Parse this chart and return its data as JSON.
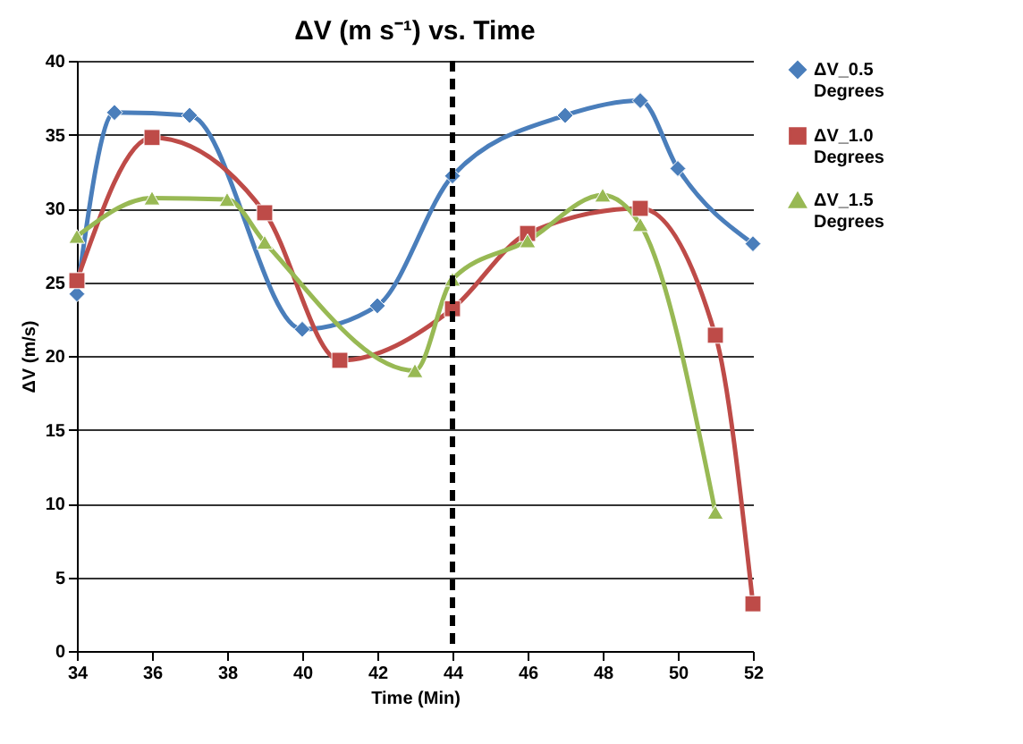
{
  "chart_data": {
    "type": "line",
    "title": "ΔV (m s⁻¹) vs. Time",
    "xlabel": "Time (Min)",
    "ylabel": "ΔV (m/s)",
    "xlim": [
      34,
      52
    ],
    "xticks": [
      34,
      36,
      38,
      40,
      42,
      44,
      46,
      48,
      50,
      52
    ],
    "ylim": [
      0,
      40
    ],
    "yticks": [
      0,
      5,
      10,
      15,
      20,
      25,
      30,
      35,
      40
    ],
    "grid": "y",
    "legend": "right",
    "line_style": "solid",
    "series": [
      {
        "name": "ΔV_0.5 Degrees",
        "color": "#4a7ebb",
        "marker": "diamond",
        "x": [
          34,
          35,
          37,
          40,
          42,
          44,
          47,
          49,
          50,
          52
        ],
        "values": [
          24.2,
          36.5,
          36.3,
          21.8,
          23.4,
          32.2,
          36.3,
          37.3,
          32.7,
          27.6
        ]
      },
      {
        "name": "ΔV_1.0 Degrees",
        "color": "#be4b48",
        "marker": "square",
        "x": [
          34,
          36,
          39,
          41,
          44,
          46,
          49,
          51,
          52
        ],
        "values": [
          25.1,
          34.8,
          29.7,
          19.7,
          23.2,
          28.3,
          30.0,
          21.4,
          3.2
        ]
      },
      {
        "name": "ΔV_1.5 Degrees",
        "color": "#98b954",
        "marker": "triangle",
        "x": [
          34,
          36,
          38,
          39,
          43,
          44,
          46,
          48,
          49,
          51
        ],
        "values": [
          28.1,
          30.7,
          30.6,
          27.7,
          19.0,
          25.2,
          27.8,
          30.9,
          28.9,
          9.4
        ]
      }
    ],
    "ref_lines": [
      {
        "axis": "x",
        "value": 44,
        "color": "#000000",
        "line_style": "dashed"
      }
    ]
  }
}
